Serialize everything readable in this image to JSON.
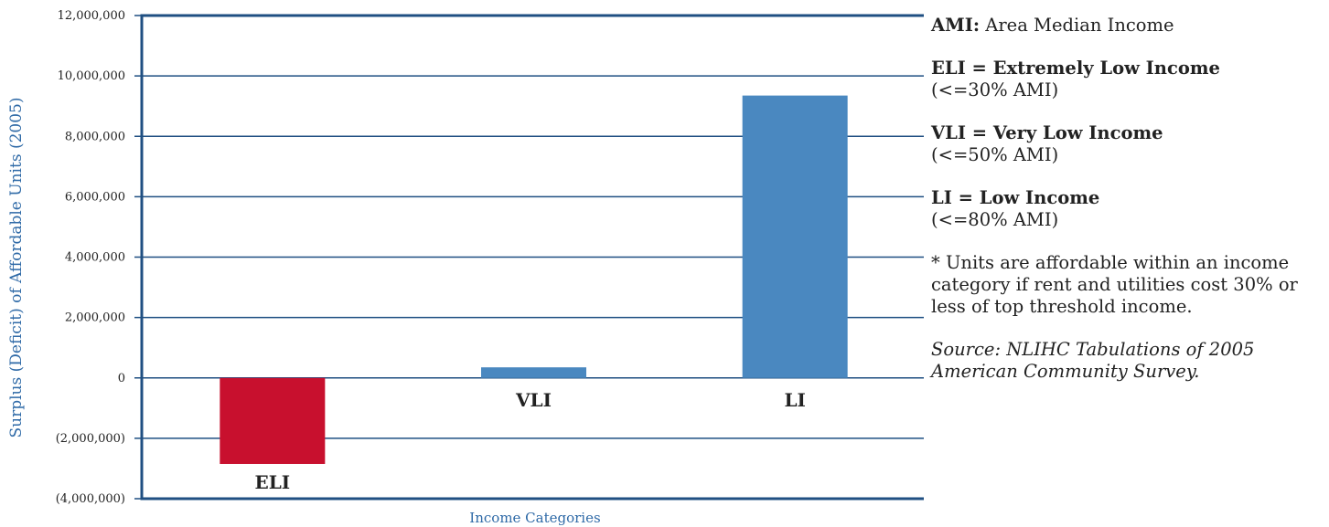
{
  "chart_data": {
    "type": "bar",
    "categories": [
      "ELI",
      "VLI",
      "LI"
    ],
    "values": [
      -2850000,
      350000,
      9350000
    ],
    "ylabel": "Surplus (Deficit) of Affordable Units (2005)",
    "xlabel": "Income Categories",
    "ylim": [
      -4000000,
      12000000
    ],
    "yticks": [
      {
        "value": 12000000,
        "label": "12,000,000"
      },
      {
        "value": 10000000,
        "label": "10,000,000"
      },
      {
        "value": 8000000,
        "label": "8,000,000"
      },
      {
        "value": 6000000,
        "label": "6,000,000"
      },
      {
        "value": 4000000,
        "label": "4,000,000"
      },
      {
        "value": 2000000,
        "label": "2,000,000"
      },
      {
        "value": 0,
        "label": "0"
      },
      {
        "value": -2000000,
        "label": "(2,000,000)"
      },
      {
        "value": -4000000,
        "label": "(4,000,000)"
      }
    ],
    "grid": true,
    "colors": {
      "ELI": "#c8102e",
      "VLI": "#4a88c0",
      "LI": "#4a88c0",
      "frame": "#1f4f82",
      "axis_label": "#2f6aa7"
    }
  },
  "legend": {
    "ami_term": "AMI:",
    "ami_desc": "Area Median Income",
    "eli_title": "ELI = Extremely Low Income",
    "eli_range": "(<=30% AMI)",
    "vli_title": "VLI = Very Low Income",
    "vli_range": "(<=50% AMI)",
    "li_title": "LI = Low Income",
    "li_range": "(<=80% AMI)",
    "note": "* Units are affordable within an income category if rent and utilities cost 30% or less of top threshold income.",
    "source": "Source: NLIHC Tabulations of 2005 American Community Survey."
  }
}
